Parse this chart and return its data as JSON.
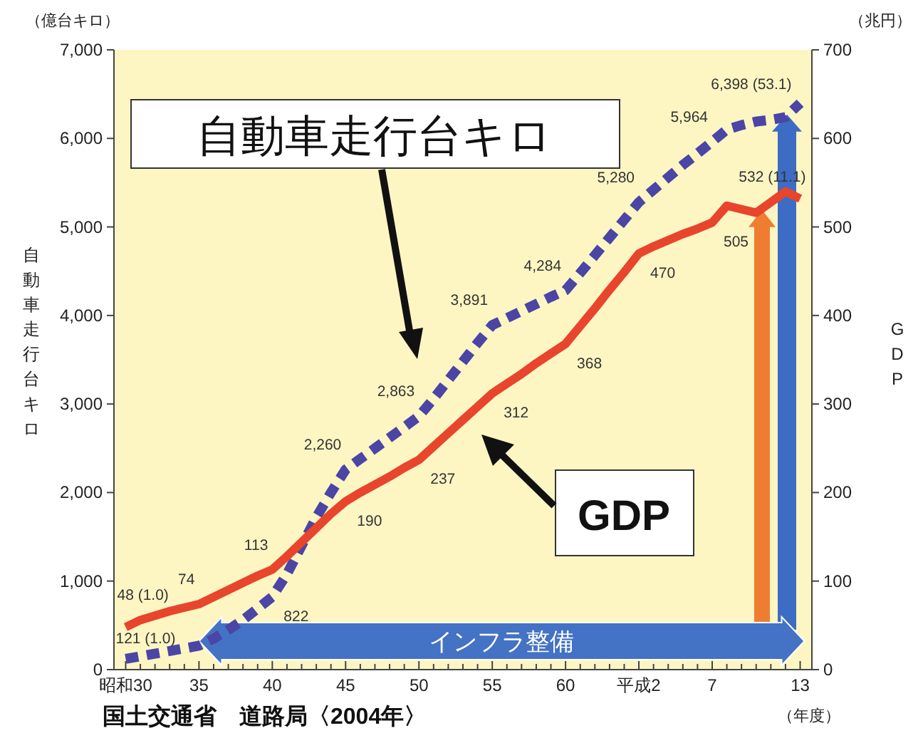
{
  "chart_data": {
    "type": "line",
    "ylabel": "自動車走行台キロ",
    "y2label": "GDP",
    "categories": [
      "昭和30",
      null,
      null,
      null,
      null,
      "35",
      null,
      null,
      null,
      null,
      "40",
      null,
      null,
      null,
      null,
      "45",
      null,
      null,
      null,
      null,
      "50",
      null,
      null,
      null,
      null,
      "55",
      null,
      null,
      null,
      null,
      "60",
      null,
      null,
      null,
      null,
      "平成2",
      null,
      null,
      null,
      null,
      "7",
      null,
      null,
      null,
      null,
      null,
      "13"
    ],
    "ylim": [
      0,
      7000
    ],
    "yticks": [
      0,
      {
        "value": 1000,
        "label": "1,000"
      },
      {
        "value": 2000,
        "label": "2,000"
      },
      {
        "value": 3000,
        "label": "3,000"
      },
      {
        "value": 4000,
        "label": "4,000"
      },
      {
        "value": 5000,
        "label": "5,000"
      },
      {
        "value": 6000,
        "label": "6,000"
      },
      {
        "value": 7000,
        "label": "7,000"
      }
    ],
    "y2lim": [
      0,
      700
    ],
    "y2ticks": [
      0,
      100,
      200,
      300,
      400,
      500,
      600,
      700
    ],
    "grid": false,
    "legend": false,
    "marker": "none",
    "series": [
      {
        "color": "#4b45a6",
        "line_style": "dashed",
        "values": [
          121,
          150,
          180,
          210,
          240,
          270,
          350,
          450,
          560,
          690,
          822,
          1080,
          1400,
          1720,
          2000,
          2260,
          2380,
          2500,
          2620,
          2740,
          2863,
          3060,
          3270,
          3480,
          3690,
          3891,
          3970,
          4050,
          4130,
          4210,
          4284,
          4480,
          4680,
          4880,
          5080,
          5280,
          5420,
          5560,
          5700,
          5830,
          5964,
          6100,
          6150,
          6190,
          6210,
          6240,
          6398
        ],
        "value_labels": [
          "121 (1.0)",
          null,
          null,
          null,
          null,
          null,
          null,
          null,
          null,
          null,
          "822",
          null,
          null,
          null,
          null,
          "2,260",
          null,
          null,
          null,
          null,
          "2,863",
          null,
          null,
          null,
          null,
          "3,891",
          null,
          null,
          null,
          null,
          "4,284",
          null,
          null,
          null,
          null,
          "5,280",
          null,
          null,
          null,
          null,
          "5,964",
          null,
          null,
          null,
          null,
          null,
          "6,398 (53.1)"
        ]
      },
      {
        "color": "#e8452c",
        "line_style": "solid",
        "axis": "y2",
        "values": [
          48,
          56,
          61,
          66,
          70,
          74,
          82,
          90,
          98,
          106,
          113,
          128,
          144,
          160,
          176,
          190,
          200,
          209,
          218,
          228,
          237,
          252,
          267,
          282,
          297,
          312,
          323,
          334,
          346,
          357,
          368,
          388,
          408,
          429,
          449,
          470,
          478,
          485,
          492,
          498,
          505,
          524,
          520,
          516,
          528,
          540,
          532
        ],
        "value_labels": [
          "48 (1.0)",
          null,
          null,
          null,
          null,
          "74",
          null,
          null,
          null,
          null,
          "113",
          null,
          null,
          null,
          null,
          "190",
          null,
          null,
          null,
          null,
          "237",
          null,
          null,
          null,
          null,
          "312",
          null,
          null,
          null,
          null,
          "368",
          null,
          null,
          null,
          null,
          "470",
          null,
          null,
          null,
          null,
          "505",
          null,
          null,
          null,
          null,
          null,
          "532 (11.1)"
        ]
      }
    ],
    "annotations": [
      "（億台キロ）",
      "（兆円）",
      "（年度）",
      "国土交通省　道路局〈2004年〉",
      "自動車走行台キロ",
      "GDP",
      "インフラ整備"
    ]
  }
}
